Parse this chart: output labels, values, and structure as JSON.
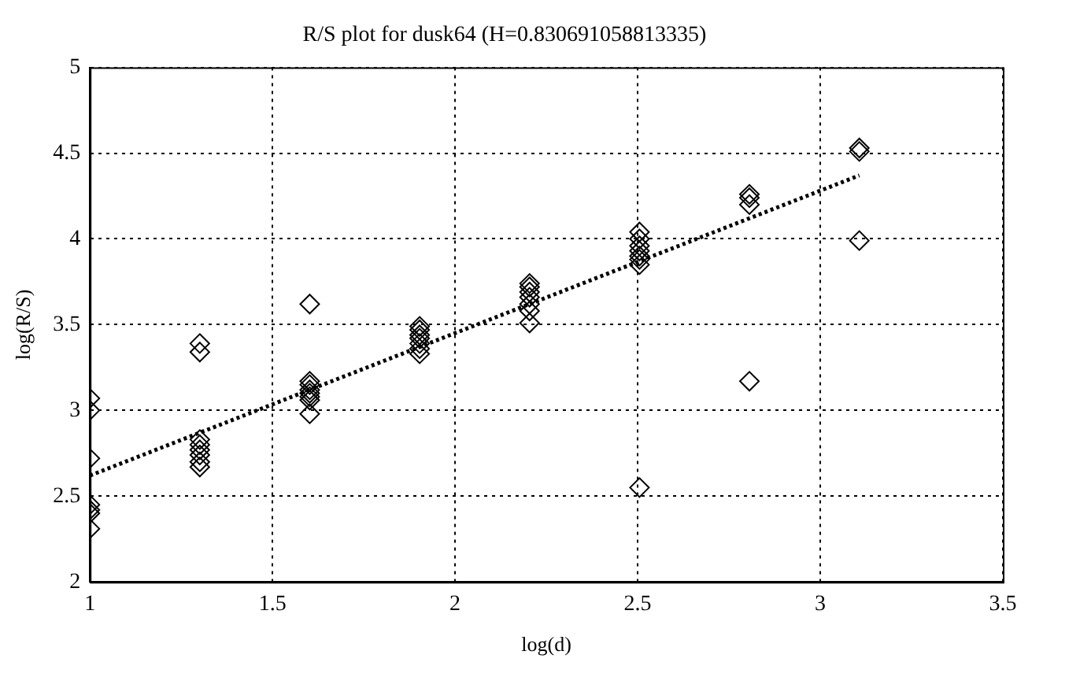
{
  "chart_data": {
    "type": "scatter",
    "title": "R/S plot for dusk64 (H=0.830691058813335)",
    "xlabel": "log(d)",
    "ylabel": "log(R/S)",
    "xlim": [
      1,
      3.5
    ],
    "xticks": [
      1,
      1.5,
      2,
      2.5,
      3,
      3.5
    ],
    "ylim": [
      2,
      5
    ],
    "yticks": [
      2,
      2.5,
      3,
      3.5,
      4,
      4.5,
      5
    ],
    "grid": true,
    "series": [
      {
        "marker": "diamond",
        "color": "#000000",
        "x": [
          1,
          1,
          1,
          1,
          1,
          1,
          1,
          1.301,
          1.301,
          1.301,
          1.301,
          1.301,
          1.301,
          1.301,
          1.301,
          1.602,
          1.602,
          1.602,
          1.602,
          1.602,
          1.602,
          1.602,
          1.602,
          1.903,
          1.903,
          1.903,
          1.903,
          1.903,
          1.903,
          1.903,
          2.204,
          2.204,
          2.204,
          2.204,
          2.204,
          2.204,
          2.204,
          2.505,
          2.505,
          2.505,
          2.505,
          2.505,
          2.505,
          2.505,
          2.505,
          2.806,
          2.806,
          2.806,
          2.806,
          3.107,
          3.107,
          3.107
        ],
        "values": [
          3.07,
          3.0,
          2.72,
          2.45,
          2.42,
          2.4,
          2.31,
          3.39,
          3.34,
          2.83,
          2.8,
          2.77,
          2.74,
          2.7,
          2.67,
          3.62,
          3.17,
          3.15,
          3.12,
          3.1,
          3.08,
          3.06,
          2.98,
          3.49,
          3.47,
          3.44,
          3.42,
          3.39,
          3.36,
          3.33,
          3.74,
          3.72,
          3.69,
          3.66,
          3.62,
          3.58,
          3.51,
          4.04,
          4.0,
          3.96,
          3.93,
          3.9,
          3.88,
          3.85,
          2.55,
          4.26,
          4.24,
          4.2,
          3.17,
          4.53,
          4.51,
          3.99
        ]
      },
      {
        "type": "line",
        "color": "#000000",
        "line_style": "dotted",
        "x": [
          1,
          3.107
        ],
        "values": [
          2.62,
          4.37
        ]
      }
    ]
  }
}
